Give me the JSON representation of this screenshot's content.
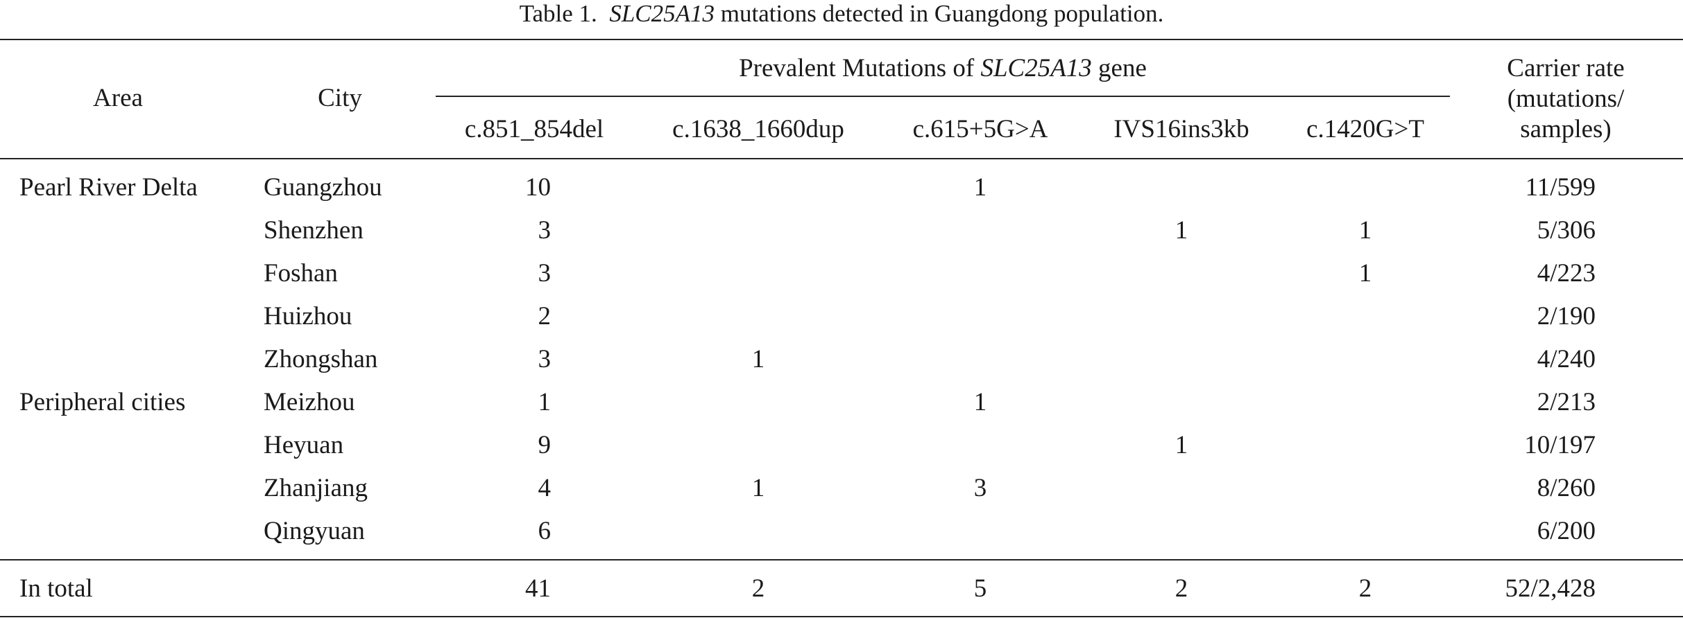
{
  "table": {
    "caption": {
      "prefix": "Table 1.",
      "gene": "SLC25A13",
      "suffix": "mutations detected in Guangdong population."
    },
    "headers": {
      "area": "Area",
      "city": "City",
      "group_prefix": "Prevalent Mutations of",
      "group_gene": "SLC25A13",
      "group_suffix": "gene",
      "mutations": [
        "c.851_854del",
        "c.1638_1660dup",
        "c.615+5G>A",
        "IVS16ins3kb",
        "c.1420G>T"
      ],
      "carrier_line1": "Carrier rate",
      "carrier_line2": "(mutations/",
      "carrier_line3": "samples)"
    },
    "rows": [
      {
        "area": "Pearl River Delta",
        "city": "Guangzhou",
        "m1": "10",
        "m2": "",
        "m3": "1",
        "m4": "",
        "m5": "",
        "rate": "11/599"
      },
      {
        "area": "",
        "city": "Shenzhen",
        "m1": "3",
        "m2": "",
        "m3": "",
        "m4": "1",
        "m5": "1",
        "rate": "5/306"
      },
      {
        "area": "",
        "city": "Foshan",
        "m1": "3",
        "m2": "",
        "m3": "",
        "m4": "",
        "m5": "1",
        "rate": "4/223"
      },
      {
        "area": "",
        "city": "Huizhou",
        "m1": "2",
        "m2": "",
        "m3": "",
        "m4": "",
        "m5": "",
        "rate": "2/190"
      },
      {
        "area": "",
        "city": "Zhongshan",
        "m1": "3",
        "m2": "1",
        "m3": "",
        "m4": "",
        "m5": "",
        "rate": "4/240"
      },
      {
        "area": "Peripheral cities",
        "city": "Meizhou",
        "m1": "1",
        "m2": "",
        "m3": "1",
        "m4": "",
        "m5": "",
        "rate": "2/213"
      },
      {
        "area": "",
        "city": "Heyuan",
        "m1": "9",
        "m2": "",
        "m3": "",
        "m4": "1",
        "m5": "",
        "rate": "10/197"
      },
      {
        "area": "",
        "city": "Zhanjiang",
        "m1": "4",
        "m2": "1",
        "m3": "3",
        "m4": "",
        "m5": "",
        "rate": "8/260"
      },
      {
        "area": "",
        "city": "Qingyuan",
        "m1": "6",
        "m2": "",
        "m3": "",
        "m4": "",
        "m5": "",
        "rate": "6/200"
      }
    ],
    "total": {
      "area": "In total",
      "city": "",
      "m1": "41",
      "m2": "2",
      "m3": "5",
      "m4": "2",
      "m5": "2",
      "rate": "52/2,428"
    }
  }
}
